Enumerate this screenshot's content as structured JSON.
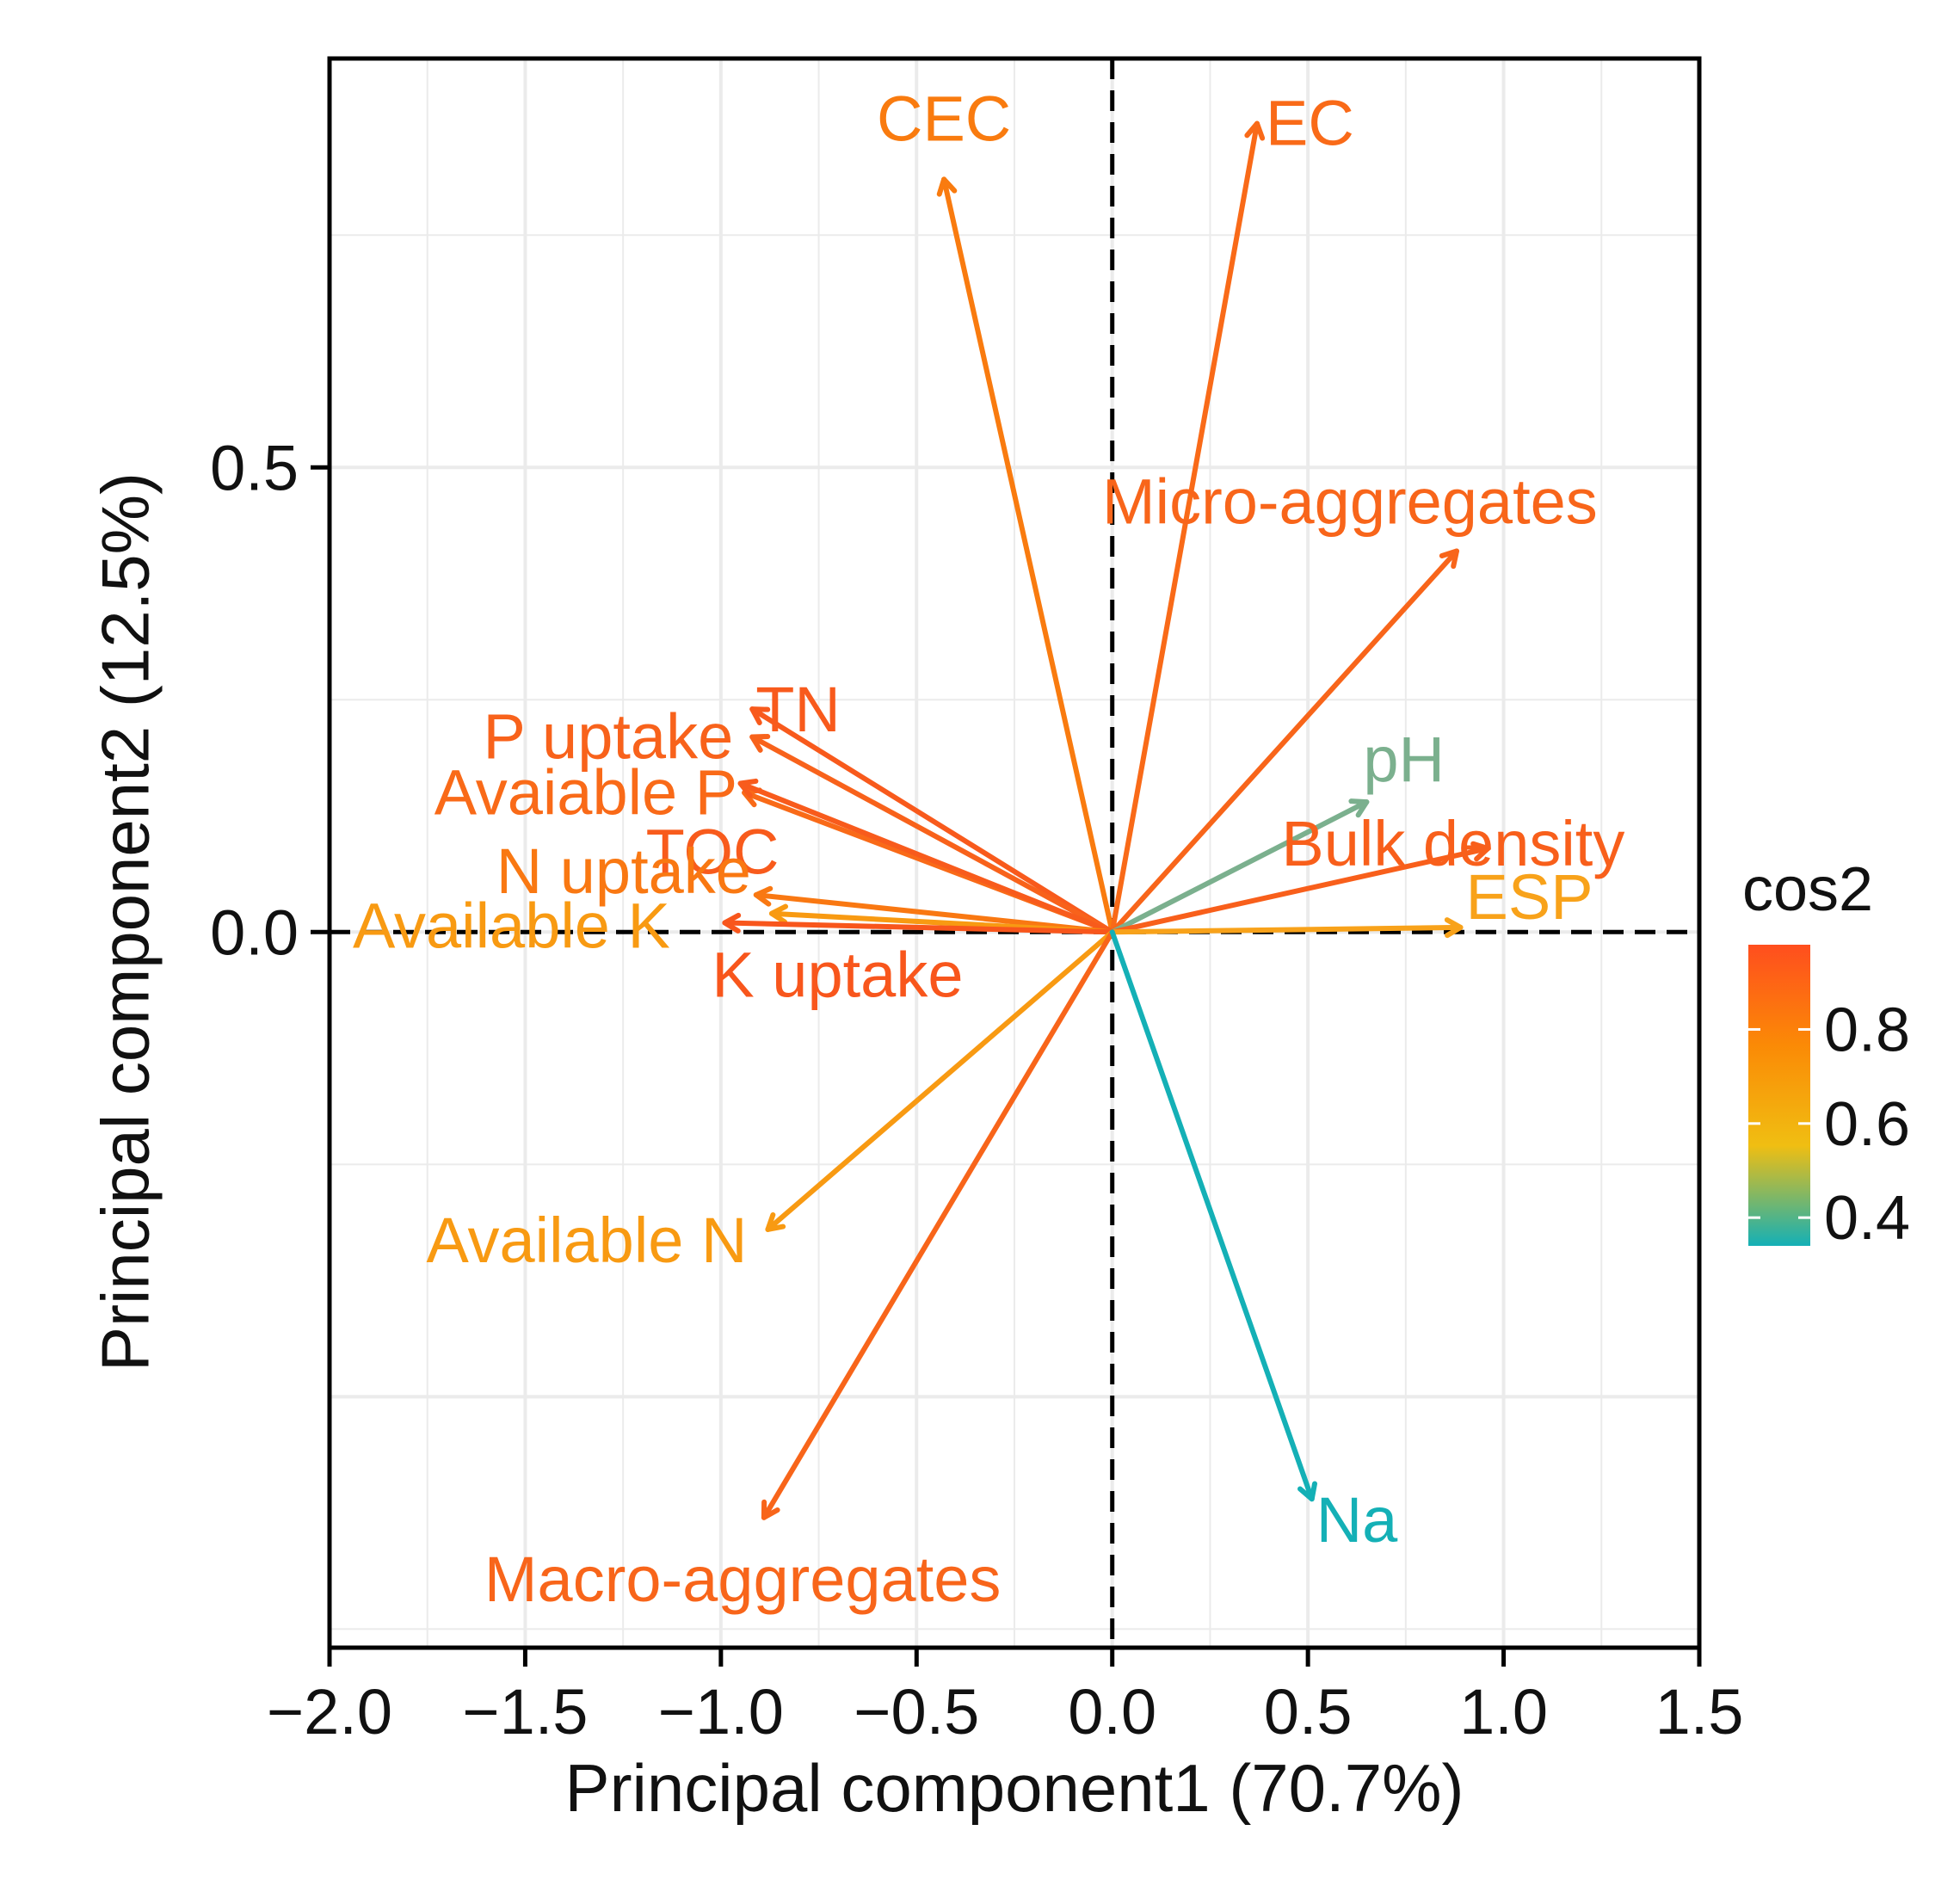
{
  "chart_data": {
    "type": "scatter",
    "subtype": "pca-variable-biplot",
    "xlabel": "Principal component1 (70.7%)",
    "ylabel": "Principal component2 (12.5%)",
    "xlim": [
      -2.0,
      1.5
    ],
    "ylim": [
      -0.77,
      0.94
    ],
    "x_ticks": [
      -2.0,
      -1.5,
      -1.0,
      -0.5,
      0.0,
      0.5,
      1.0,
      1.5
    ],
    "x_tick_labels": [
      "−2.0",
      "−1.5",
      "−1.0",
      "−0.5",
      "0.0",
      "0.5",
      "1.0",
      "1.5"
    ],
    "y_ticks": [
      0.0,
      0.5
    ],
    "y_tick_labels": [
      "0.0",
      "0.5"
    ],
    "grid": true,
    "reference_lines": {
      "x": 0,
      "y": 0,
      "style": "dashed"
    },
    "variables": [
      {
        "name": "CEC",
        "x": -0.43,
        "y": 0.81,
        "cos2": 0.85,
        "color": "#F97B0F"
      },
      {
        "name": "EC",
        "x": 0.37,
        "y": 0.87,
        "cos2": 0.9,
        "color": "#F96A18"
      },
      {
        "name": "Micro-aggregates",
        "x": 0.88,
        "y": 0.41,
        "cos2": 0.92,
        "color": "#F8651A"
      },
      {
        "name": "TN",
        "x": -0.92,
        "y": 0.24,
        "cos2": 0.97,
        "color": "#F85A1C"
      },
      {
        "name": "P uptake",
        "x": -0.92,
        "y": 0.21,
        "cos2": 0.93,
        "color": "#F8621B"
      },
      {
        "name": "Avaiable P",
        "x": -0.94,
        "y": 0.15,
        "cos2": 0.9,
        "color": "#F96A18"
      },
      {
        "name": "TOC",
        "x": -0.95,
        "y": 0.16,
        "cos2": 0.96,
        "color": "#F85B1C"
      },
      {
        "name": "pH",
        "x": 0.65,
        "y": 0.14,
        "cos2": 0.52,
        "color": "#7BB08E"
      },
      {
        "name": "Bulk density",
        "x": 0.96,
        "y": 0.09,
        "cos2": 0.94,
        "color": "#F85F1B"
      },
      {
        "name": "N uptake",
        "x": -0.91,
        "y": 0.04,
        "cos2": 0.86,
        "color": "#F97812"
      },
      {
        "name": "Available K",
        "x": -0.87,
        "y": 0.02,
        "cos2": 0.8,
        "color": "#F89A12"
      },
      {
        "name": "ESP",
        "x": 0.89,
        "y": 0.005,
        "cos2": 0.79,
        "color": "#F8A21A"
      },
      {
        "name": "K uptake",
        "x": -0.99,
        "y": 0.01,
        "cos2": 0.98,
        "color": "#F8561C"
      },
      {
        "name": "Available N",
        "x": -0.88,
        "y": -0.32,
        "cos2": 0.8,
        "color": "#F89A12"
      },
      {
        "name": "Macro-aggregates",
        "x": -0.89,
        "y": -0.63,
        "cos2": 0.92,
        "color": "#F8651A"
      },
      {
        "name": "Na",
        "x": 0.51,
        "y": -0.61,
        "cos2": 0.34,
        "color": "#14B0B6"
      }
    ],
    "legend": {
      "title": "cos2",
      "position": "right",
      "type": "colorbar",
      "range": [
        0.34,
        0.98
      ],
      "ticks": [
        0.4,
        0.6,
        0.8
      ],
      "tick_labels": [
        "0.4",
        "0.6",
        "0.8"
      ],
      "gradient": [
        "#14B0B6",
        "#F0BE12",
        "#FB8A06",
        "#FF4E1E"
      ]
    }
  }
}
